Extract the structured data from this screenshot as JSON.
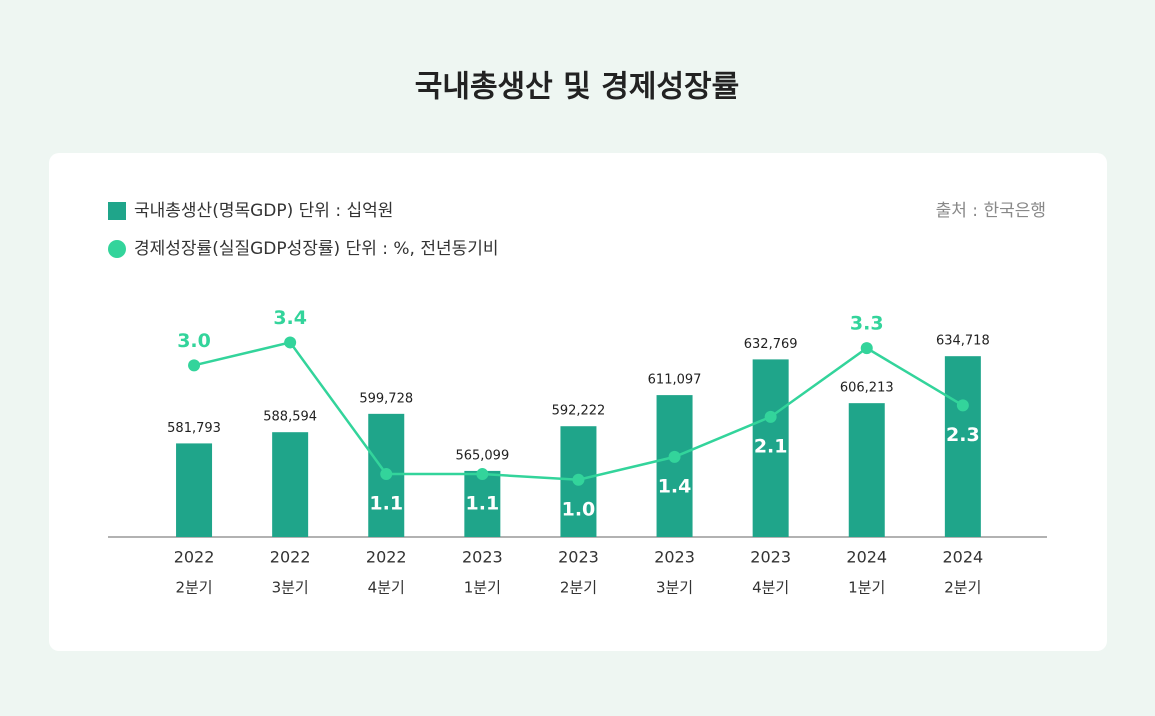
{
  "chart_data": {
    "type": "bar-line",
    "title": "국내총생산 및 경제성장률",
    "source": "출처 : 한국은행",
    "categories": [
      [
        "2022",
        "2분기"
      ],
      [
        "2022",
        "3분기"
      ],
      [
        "2022",
        "4분기"
      ],
      [
        "2023",
        "1분기"
      ],
      [
        "2023",
        "2분기"
      ],
      [
        "2023",
        "3분기"
      ],
      [
        "2023",
        "4분기"
      ],
      [
        "2024",
        "1분기"
      ],
      [
        "2024",
        "2분기"
      ]
    ],
    "series": [
      {
        "name": "국내총생산(명목GDP) 단위 : 십억원",
        "type": "bar",
        "color": "#1fa58a",
        "values": [
          581793,
          588594,
          599728,
          565099,
          592222,
          611097,
          632769,
          606213,
          634718
        ],
        "value_labels": [
          "581,793",
          "588,594",
          "599,728",
          "565,099",
          "592,222",
          "611,097",
          "632,769",
          "606,213",
          "634,718"
        ]
      },
      {
        "name": "경제성장률(실질GDP성장률) 단위 : %, 전년동기비",
        "type": "line",
        "axis": "y2",
        "color": "#33d49b",
        "values": [
          3.0,
          3.4,
          1.1,
          1.1,
          1.0,
          1.4,
          2.1,
          3.3,
          2.3
        ],
        "value_labels": [
          "3.0",
          "3.4",
          "1.1",
          "1.1",
          "1.0",
          "1.4",
          "2.1",
          "3.3",
          "2.3"
        ]
      }
    ],
    "ylim": [
      525000,
      650000
    ],
    "y2lim": [
      0,
      3.6
    ]
  }
}
